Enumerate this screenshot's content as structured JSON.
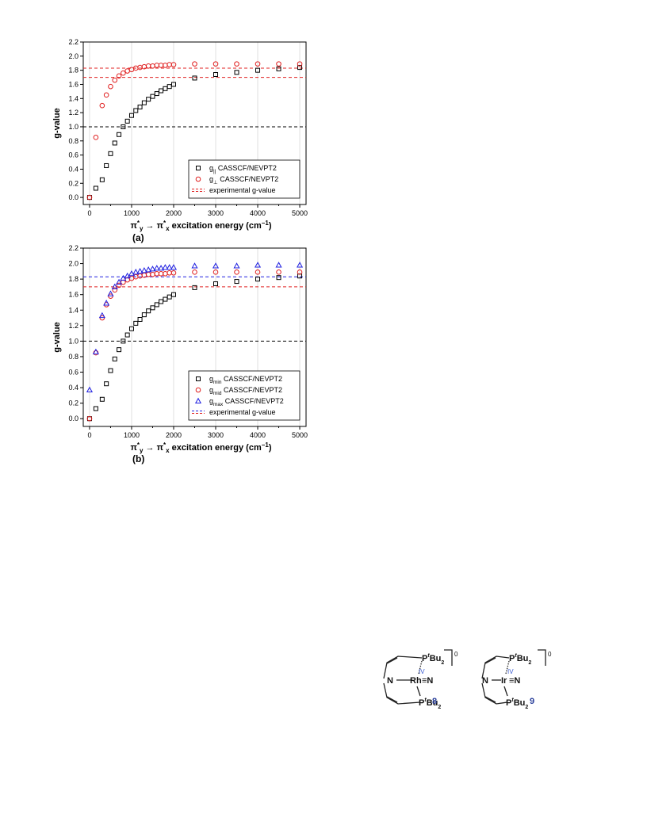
{
  "chart_data": [
    {
      "type": "scatter",
      "panel": "(a)",
      "title": "",
      "ylabel": "g-value",
      "xlabel": "π*y → π*x excitation energy (cm−1)",
      "xlim": [
        -150,
        5150
      ],
      "ylim": [
        -0.1,
        2.2
      ],
      "xticks": [
        0,
        1000,
        2000,
        3000,
        4000,
        5000
      ],
      "yticks": [
        0.0,
        0.2,
        0.4,
        0.6,
        0.8,
        1.0,
        1.2,
        1.4,
        1.6,
        1.8,
        2.0,
        2.2
      ],
      "grid": "vertical",
      "legend": "bottom-right",
      "series": [
        {
          "name": "g|| CASSCF/NEVPT2",
          "marker": "square",
          "color": "#000000",
          "x": [
            0,
            150,
            300,
            400,
            500,
            600,
            700,
            800,
            900,
            1000,
            1100,
            1200,
            1300,
            1400,
            1500,
            1600,
            1700,
            1800,
            1900,
            2000,
            2500,
            3000,
            3500,
            4000,
            4500,
            5000
          ],
          "y": [
            0,
            0.13,
            0.25,
            0.45,
            0.62,
            0.77,
            0.89,
            1.0,
            1.08,
            1.16,
            1.23,
            1.28,
            1.34,
            1.39,
            1.43,
            1.47,
            1.51,
            1.54,
            1.57,
            1.6,
            1.69,
            1.74,
            1.77,
            1.8,
            1.82,
            1.84
          ]
        },
        {
          "name": "g⊥ CASSCF/NEVPT2",
          "marker": "circle",
          "color": "#e02020",
          "x": [
            0,
            150,
            300,
            400,
            500,
            600,
            700,
            800,
            900,
            1000,
            1100,
            1200,
            1300,
            1400,
            1500,
            1600,
            1700,
            1800,
            1900,
            2000,
            2500,
            3000,
            3500,
            4000,
            4500,
            5000
          ],
          "y": [
            0,
            0.85,
            1.3,
            1.45,
            1.57,
            1.66,
            1.72,
            1.76,
            1.79,
            1.81,
            1.83,
            1.84,
            1.85,
            1.86,
            1.86,
            1.87,
            1.87,
            1.87,
            1.88,
            1.88,
            1.89,
            1.89,
            1.89,
            1.89,
            1.89,
            1.89
          ]
        }
      ],
      "reference_lines": [
        {
          "name": "experimental g-value",
          "y": 1.83,
          "color": "#e02020"
        },
        {
          "name": "experimental g-value",
          "y": 1.7,
          "color": "#e02020"
        },
        {
          "name": "",
          "y": 1.0,
          "color": "#000000"
        }
      ]
    },
    {
      "type": "scatter",
      "panel": "(b)",
      "title": "",
      "ylabel": "g-value",
      "xlabel": "π*y → π*x excitation energy (cm−1)",
      "xlim": [
        -150,
        5150
      ],
      "ylim": [
        -0.1,
        2.2
      ],
      "xticks": [
        0,
        1000,
        2000,
        3000,
        4000,
        5000
      ],
      "yticks": [
        0.0,
        0.2,
        0.4,
        0.6,
        0.8,
        1.0,
        1.2,
        1.4,
        1.6,
        1.8,
        2.0,
        2.2
      ],
      "grid": "vertical",
      "legend": "bottom-right",
      "series": [
        {
          "name": "gmin CASSCF/NEVPT2",
          "marker": "square",
          "color": "#000000",
          "x": [
            0,
            150,
            300,
            400,
            500,
            600,
            700,
            800,
            900,
            1000,
            1100,
            1200,
            1300,
            1400,
            1500,
            1600,
            1700,
            1800,
            1900,
            2000,
            2500,
            3000,
            3500,
            4000,
            4500,
            5000
          ],
          "y": [
            0,
            0.13,
            0.25,
            0.45,
            0.62,
            0.77,
            0.89,
            1.0,
            1.08,
            1.16,
            1.23,
            1.28,
            1.34,
            1.39,
            1.43,
            1.47,
            1.51,
            1.54,
            1.57,
            1.6,
            1.69,
            1.74,
            1.77,
            1.8,
            1.82,
            1.84
          ]
        },
        {
          "name": "gmid CASSCF/NEVPT2",
          "marker": "circle",
          "color": "#e02020",
          "x": [
            0,
            150,
            300,
            400,
            500,
            600,
            700,
            800,
            900,
            1000,
            1100,
            1200,
            1300,
            1400,
            1500,
            1600,
            1700,
            1800,
            1900,
            2000,
            2500,
            3000,
            3500,
            4000,
            4500,
            5000
          ],
          "y": [
            0,
            0.85,
            1.3,
            1.47,
            1.58,
            1.66,
            1.72,
            1.76,
            1.79,
            1.81,
            1.83,
            1.84,
            1.85,
            1.86,
            1.86,
            1.87,
            1.87,
            1.87,
            1.88,
            1.88,
            1.89,
            1.89,
            1.89,
            1.89,
            1.89,
            1.89
          ]
        },
        {
          "name": "gmax CASSCF/NEVPT2",
          "marker": "triangle",
          "color": "#2020e0",
          "x": [
            0,
            150,
            300,
            400,
            500,
            600,
            700,
            800,
            900,
            1000,
            1100,
            1200,
            1300,
            1400,
            1500,
            1600,
            1700,
            1800,
            1900,
            2000,
            2500,
            3000,
            3500,
            4000,
            4500,
            5000
          ],
          "y": [
            0.37,
            0.86,
            1.33,
            1.49,
            1.61,
            1.7,
            1.76,
            1.81,
            1.84,
            1.87,
            1.89,
            1.9,
            1.91,
            1.92,
            1.93,
            1.94,
            1.94,
            1.95,
            1.95,
            1.95,
            1.97,
            1.97,
            1.97,
            1.98,
            1.98,
            1.98
          ]
        }
      ],
      "reference_lines": [
        {
          "name": "experimental g-value",
          "y": 1.83,
          "color": "#2020e0"
        },
        {
          "name": "experimental g-value",
          "y": 1.7,
          "color": "#e02020"
        },
        {
          "name": "",
          "y": 1.0,
          "color": "#000000"
        }
      ]
    }
  ],
  "legend_a": [
    {
      "main": "g",
      "sub": "||",
      "rest": " CASSCF/NEVPT2"
    },
    {
      "main": "g",
      "sub": "⊥",
      "rest": " CASSCF/NEVPT2"
    },
    {
      "main": "experimental g-value",
      "sub": "",
      "rest": ""
    }
  ],
  "legend_b": [
    {
      "main": "g",
      "sub": "min",
      "rest": " CASSCF/NEVPT2"
    },
    {
      "main": "g",
      "sub": "mid",
      "rest": " CASSCF/NEVPT2"
    },
    {
      "main": "g",
      "sub": "max",
      "rest": " CASSCF/NEVPT2"
    },
    {
      "main": "experimental g-value",
      "sub": "",
      "rest": ""
    }
  ],
  "xlabel_parts": {
    "pi": "π",
    "star": "*",
    "y": "y",
    "arrow": " → ",
    "x": "x",
    "text": " excitation energy (cm",
    "exp": "−1",
    "close": ")"
  },
  "panel_labels": {
    "a": "(a)",
    "b": "(b)"
  },
  "molecules": {
    "compound_8": {
      "number": "8",
      "metal": "Rh",
      "ox_state": "IV",
      "nitride": "≡N",
      "ligand_N": "N",
      "phosphine_top": "P",
      "phosphine_top_sup": "t",
      "phosphine_top_rest": "Bu",
      "phosphine_top_sub": "2",
      "phosphine_bottom": "P",
      "phosphine_bottom_sup": "t",
      "phosphine_bottom_rest": "Bu",
      "phosphine_bottom_sub": "2",
      "charge": "0"
    },
    "compound_9": {
      "number": "9",
      "metal": "Ir",
      "ox_state": "IV",
      "nitride": "≡N",
      "ligand_N": "N",
      "phosphine_top": "P",
      "phosphine_top_sup": "t",
      "phosphine_top_rest": "Bu",
      "phosphine_top_sub": "2",
      "phosphine_bottom": "P",
      "phosphine_bottom_sup": "t",
      "phosphine_bottom_rest": "Bu",
      "phosphine_bottom_sub": "2",
      "charge": "0"
    }
  }
}
